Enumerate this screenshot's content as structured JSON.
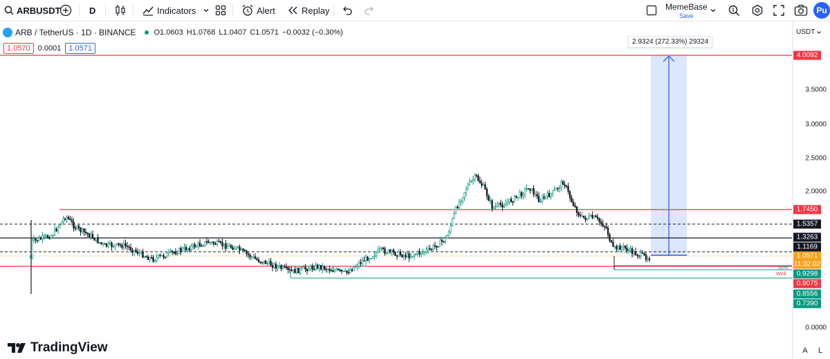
{
  "toolbar": {
    "symbol": "ARBUSDT",
    "interval": "D",
    "indicators_label": "Indicators",
    "alert_label": "Alert",
    "replay_label": "Replay",
    "layout_name": "MemeBase",
    "layout_save": "Save",
    "profile_initials": "Pu"
  },
  "legend": {
    "title": "ARB / TetherUS · 1D · BINANCE",
    "open": "O1.0603",
    "high": "H1.0768",
    "low": "L1.0407",
    "close": "C1.0571",
    "change": "−0.0032 (−0.30%)"
  },
  "trade": {
    "sell": "1.0570",
    "spread": "0.0001",
    "buy": "1.0571"
  },
  "price_axis": {
    "currency": "USDT",
    "ticks": [
      "3.5000",
      "3.0000",
      "2.5000",
      "2.0000",
      "0.0000"
    ],
    "tags": [
      {
        "label": "4.0092",
        "color": "#f23645"
      },
      {
        "label": "1.7450",
        "color": "#f23645"
      },
      {
        "label": "1.5357",
        "color": "#131722"
      },
      {
        "label": "1.3263",
        "color": "#131722"
      },
      {
        "label": "1.1169",
        "color": "#131722"
      },
      {
        "label": "1.0571",
        "color": "#f7a21b"
      },
      {
        "label": "11:32:02",
        "color": "#f7a21b"
      },
      {
        "label": "0.9298",
        "color": "#089981"
      },
      {
        "label": "0.9075",
        "color": "#f23645"
      },
      {
        "label": "0.8556",
        "color": "#089981"
      },
      {
        "label": "0.7390",
        "color": "#089981"
      }
    ]
  },
  "measure": {
    "label": "2.9324 (272.33%) 29324"
  },
  "annotations": {
    "fifty": "50%",
    "wick": "Wick"
  },
  "branding": {
    "logo_text": "TradingView"
  },
  "bottom": {
    "auto": "A",
    "log": "L"
  },
  "colors": {
    "up": "#089981",
    "down": "#131722",
    "resistance": "#f23645",
    "support": "#089981",
    "measure": "#2962ff",
    "accent": "#2962ff"
  }
}
